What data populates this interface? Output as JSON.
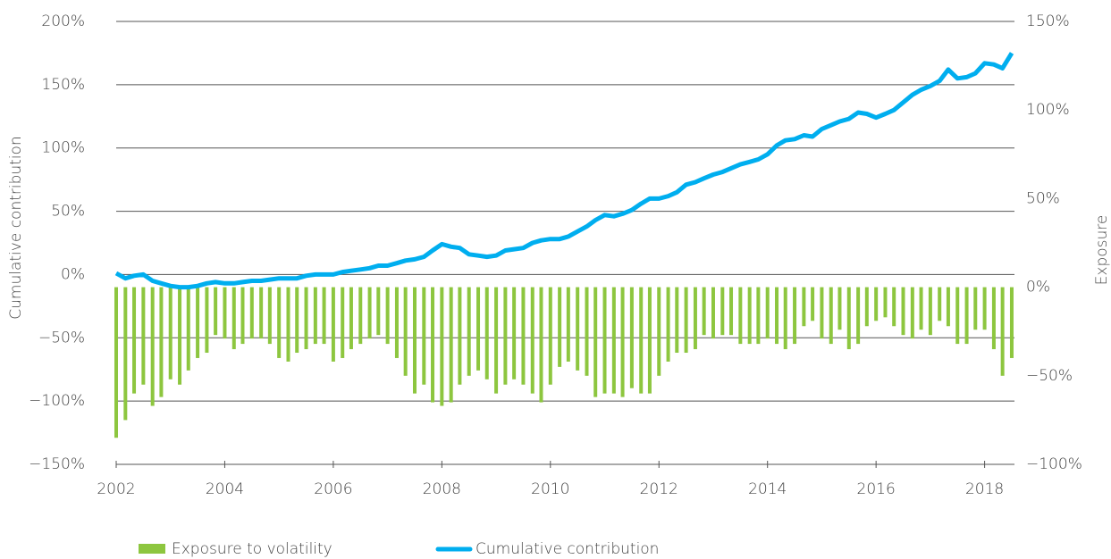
{
  "chart_data": {
    "type": "bar_line",
    "y_label": "Cumulative contribution",
    "y2_label": "Exposure",
    "xlim": [
      2002,
      2018.55
    ],
    "xticks": [
      2002,
      2004,
      2006,
      2008,
      2010,
      2012,
      2014,
      2016,
      2018
    ],
    "ylim": [
      -150,
      200
    ],
    "yticks": [
      {
        "value": -150,
        "label": "−150%"
      },
      {
        "value": -100,
        "label": "−100%"
      },
      {
        "value": -50,
        "label": "−50%"
      },
      {
        "value": 0,
        "label": "0%"
      },
      {
        "value": 50,
        "label": "50%"
      },
      {
        "value": 100,
        "label": "100%"
      },
      {
        "value": 150,
        "label": "150%"
      },
      {
        "value": 200,
        "label": "200%"
      }
    ],
    "y2lim": [
      -100,
      150
    ],
    "y2ticks": [
      {
        "value": -100,
        "label": "−100%"
      },
      {
        "value": -50,
        "label": "−50%"
      },
      {
        "value": 0,
        "label": "0%"
      },
      {
        "value": 50,
        "label": "50%"
      },
      {
        "value": 100,
        "label": "100%"
      },
      {
        "value": 150,
        "label": "150%"
      }
    ],
    "grid": true,
    "legend": "bottom",
    "x": [
      2002.0,
      2002.17,
      2002.33,
      2002.5,
      2002.67,
      2002.83,
      2003.0,
      2003.17,
      2003.33,
      2003.5,
      2003.67,
      2003.83,
      2004.0,
      2004.17,
      2004.33,
      2004.5,
      2004.67,
      2004.83,
      2005.0,
      2005.17,
      2005.33,
      2005.5,
      2005.67,
      2005.83,
      2006.0,
      2006.17,
      2006.33,
      2006.5,
      2006.67,
      2006.83,
      2007.0,
      2007.17,
      2007.33,
      2007.5,
      2007.67,
      2007.83,
      2008.0,
      2008.17,
      2008.33,
      2008.5,
      2008.67,
      2008.83,
      2009.0,
      2009.17,
      2009.33,
      2009.5,
      2009.67,
      2009.83,
      2010.0,
      2010.17,
      2010.33,
      2010.5,
      2010.67,
      2010.83,
      2011.0,
      2011.17,
      2011.33,
      2011.5,
      2011.67,
      2011.83,
      2012.0,
      2012.17,
      2012.33,
      2012.5,
      2012.67,
      2012.83,
      2013.0,
      2013.17,
      2013.33,
      2013.5,
      2013.67,
      2013.83,
      2014.0,
      2014.17,
      2014.33,
      2014.5,
      2014.67,
      2014.83,
      2015.0,
      2015.17,
      2015.33,
      2015.5,
      2015.67,
      2015.83,
      2016.0,
      2016.17,
      2016.33,
      2016.5,
      2016.67,
      2016.83,
      2017.0,
      2017.17,
      2017.33,
      2017.5,
      2017.67,
      2017.83,
      2018.0,
      2018.17,
      2018.33,
      2018.5
    ],
    "series": [
      {
        "name": "Exposure to volatility",
        "type": "bar",
        "axis": "y2",
        "color": "#8dc63f",
        "values": [
          -85,
          -75,
          -60,
          -55,
          -67,
          -62,
          -52,
          -55,
          -47,
          -40,
          -37,
          -27,
          -29,
          -35,
          -32,
          -29,
          -29,
          -32,
          -40,
          -42,
          -37,
          -35,
          -32,
          -32,
          -42,
          -40,
          -35,
          -32,
          -29,
          -27,
          -32,
          -40,
          -50,
          -60,
          -55,
          -65,
          -67,
          -65,
          -55,
          -50,
          -47,
          -52,
          -60,
          -55,
          -52,
          -55,
          -60,
          -65,
          -55,
          -45,
          -42,
          -47,
          -50,
          -62,
          -60,
          -60,
          -62,
          -57,
          -60,
          -60,
          -50,
          -42,
          -37,
          -37,
          -35,
          -27,
          -29,
          -27,
          -27,
          -32,
          -32,
          -32,
          -29,
          -32,
          -35,
          -32,
          -22,
          -19,
          -29,
          -32,
          -24,
          -35,
          -32,
          -22,
          -19,
          -17,
          -22,
          -27,
          -29,
          -24,
          -27,
          -19,
          -22,
          -32,
          -32,
          -24,
          -24,
          -35,
          -50,
          -40
        ]
      },
      {
        "name": "Cumulative contribution",
        "type": "line",
        "color": "#00aeef",
        "values": [
          1,
          -3,
          -1,
          0,
          -5,
          -7,
          -9,
          -10,
          -10,
          -9,
          -7,
          -6,
          -7,
          -7,
          -6,
          -5,
          -5,
          -4,
          -3,
          -3,
          -3,
          -1,
          0,
          0,
          0,
          2,
          3,
          4,
          5,
          7,
          7,
          9,
          11,
          12,
          14,
          19,
          24,
          22,
          21,
          16,
          15,
          14,
          15,
          19,
          20,
          21,
          25,
          27,
          28,
          28,
          30,
          34,
          38,
          43,
          47,
          46,
          48,
          51,
          56,
          60,
          60,
          62,
          65,
          71,
          73,
          76,
          79,
          81,
          84,
          87,
          89,
          91,
          95,
          102,
          106,
          107,
          110,
          109,
          115,
          118,
          121,
          123,
          128,
          127,
          124,
          127,
          130,
          136,
          142,
          146,
          149,
          153,
          162,
          155,
          156,
          159,
          167,
          166,
          163,
          175
        ]
      }
    ]
  }
}
